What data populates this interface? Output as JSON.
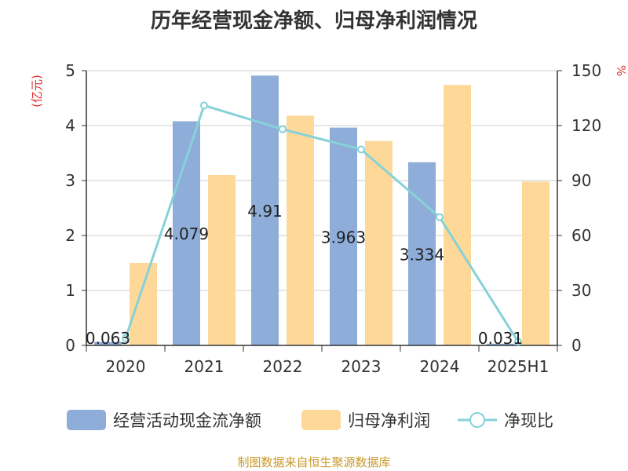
{
  "title": "历年经营现金净额、归母净利润情况",
  "source": "制图数据来自恒生聚源数据库",
  "colors": {
    "cash": "#8eadd9",
    "profit": "#fdd898",
    "ratio": "#86d2d8",
    "unit": "#e03030",
    "axis": "#333333",
    "grid": "#cccccc"
  },
  "chart_data": {
    "type": "bar",
    "categories": [
      "2020",
      "2021",
      "2022",
      "2023",
      "2024",
      "2025H1"
    ],
    "ylabel_left": "(亿元)",
    "ylabel_right": "%",
    "ylim_left": [
      0,
      5
    ],
    "ylim_right": [
      0,
      150
    ],
    "yticks_left": [
      "0",
      "1",
      "2",
      "3",
      "4",
      "5"
    ],
    "yticks_right": [
      "0",
      "30",
      "60",
      "90",
      "120",
      "150"
    ],
    "series": [
      {
        "name": "经营活动现金流净额",
        "type": "bar",
        "axis": "left",
        "values": [
          0.063,
          4.079,
          4.91,
          3.963,
          3.334,
          0.031
        ],
        "labels": [
          "0.063",
          "4.079",
          "4.91",
          "3.963",
          "3.334",
          "0.031"
        ]
      },
      {
        "name": "归母净利润",
        "type": "bar",
        "axis": "left",
        "values": [
          1.5,
          3.1,
          4.18,
          3.72,
          4.74,
          2.98
        ]
      },
      {
        "name": "净现比",
        "type": "line",
        "axis": "right",
        "values": [
          4,
          131,
          118,
          107,
          70,
          2
        ]
      }
    ],
    "legend_position": "bottom",
    "grid": true
  }
}
